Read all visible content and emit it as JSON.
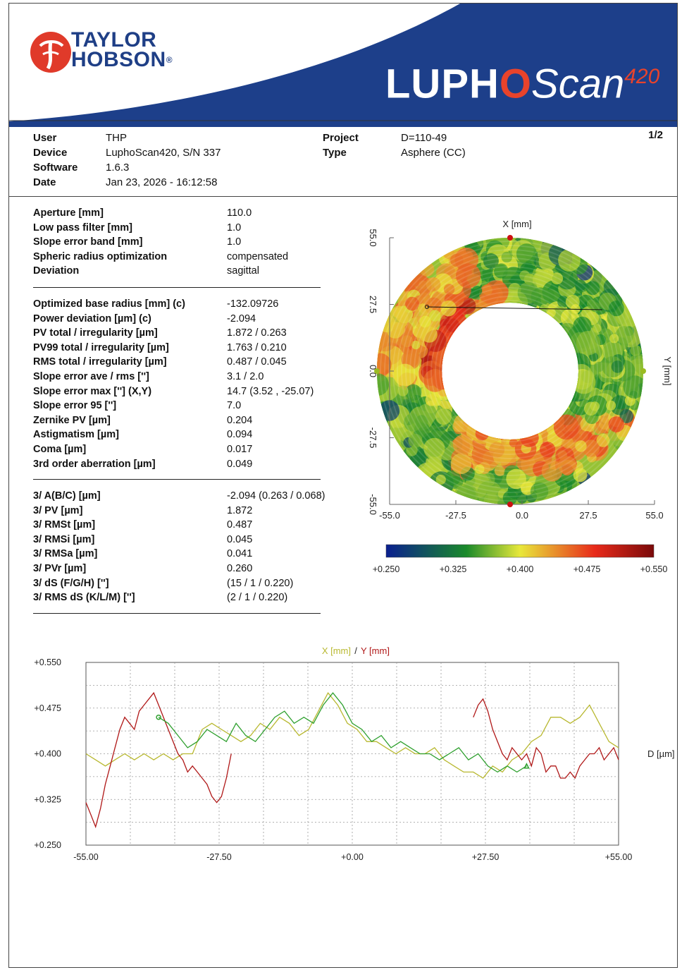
{
  "brand": {
    "line1": "TAYLOR",
    "line2": "HOBSON",
    "reg": "®"
  },
  "product": {
    "name_part1": "LUPH",
    "name_o": "O",
    "name_part2": "Scan",
    "model": "420"
  },
  "page": "1/2",
  "header_info": [
    {
      "label": "User",
      "value": "THP"
    },
    {
      "label": "Device",
      "value": "LuphoScan420, S/N 337"
    },
    {
      "label": "Software",
      "value": "1.6.3"
    },
    {
      "label": "Date",
      "value": "Jan 23, 2026 - 16:12:58"
    }
  ],
  "project_info": [
    {
      "label": "Project",
      "value": "D=110-49"
    },
    {
      "label": "Type",
      "value": "Asphere (CC)"
    }
  ],
  "settings": [
    {
      "label": "Aperture [mm]",
      "value": "110.0"
    },
    {
      "label": "Low pass filter [mm]",
      "value": "1.0"
    },
    {
      "label": "Slope error band [mm]",
      "value": "1.0"
    },
    {
      "label": "Spheric radius optimization",
      "value": "compensated"
    },
    {
      "label": "Deviation",
      "value": "sagittal"
    }
  ],
  "results": [
    {
      "label": "Optimized base radius [mm]  (c)",
      "value": "-132.09726"
    },
    {
      "label": "Power deviation [µm]  (c)",
      "value": "-2.094"
    },
    {
      "label": "PV total / irregularity [µm]",
      "value": "1.872 / 0.263"
    },
    {
      "label": "PV99 total / irregularity [µm]",
      "value": "1.763 / 0.210"
    },
    {
      "label": "RMS total / irregularity [µm]",
      "value": "0.487 / 0.045"
    },
    {
      "label": "Slope error ave / rms ['']",
      "value": "3.1 / 2.0"
    },
    {
      "label": "Slope error max [''] (X,Y)",
      "value": "14.7  (3.52 , -25.07)"
    },
    {
      "label": "Slope error 95 ['']",
      "value": "7.0"
    },
    {
      "label": "Zernike PV [µm]",
      "value": "0.204"
    },
    {
      "label": "Astigmatism [µm]",
      "value": "0.094"
    },
    {
      "label": "Coma [µm]",
      "value": "0.017"
    },
    {
      "label": "3rd order aberration [µm]",
      "value": "0.049"
    }
  ],
  "iso": [
    {
      "label": "3/ A(B/C) [µm]",
      "value": "-2.094 (0.263 / 0.068)"
    },
    {
      "label": "3/ PV [µm]",
      "value": "1.872"
    },
    {
      "label": "3/ RMSt [µm]",
      "value": "0.487"
    },
    {
      "label": "3/ RMSi [µm]",
      "value": "0.045"
    },
    {
      "label": "3/ RMSa [µm]",
      "value": "0.041"
    },
    {
      "label": "3/ PVr [µm]",
      "value": "0.260"
    },
    {
      "label": "3/ dS (F/G/H) ['']",
      "value": "(15 / 1 / 0.220)"
    },
    {
      "label": "3/ RMS dS (K/L/M) ['']",
      "value": "(2 / 1 / 0.220)"
    }
  ],
  "chart_data": [
    {
      "type": "heatmap",
      "title": "",
      "xlabel": "X [mm]",
      "ylabel": "Y [mm]",
      "x_ticks": [
        "-55.0",
        "-27.5",
        "0.0",
        "27.5",
        "55.0"
      ],
      "y_ticks": [
        "55.0",
        "27.5",
        "0.0",
        "-27.5",
        "-55.0"
      ],
      "xlim": [
        -55,
        55
      ],
      "ylim": [
        -55,
        55
      ],
      "colorbar_ticks": [
        "+0.250",
        "+0.325",
        "+0.400",
        "+0.475",
        "+0.550"
      ],
      "colorbar_range": [
        0.25,
        0.55
      ],
      "colors": [
        "#0a1f8f",
        "#1a8a2a",
        "#e8e83a",
        "#e82a1a",
        "#7a0a0a"
      ]
    },
    {
      "type": "line",
      "title": "",
      "legend": [
        "X [mm]",
        "/",
        "Y [mm]"
      ],
      "ylabel": "D [µm]",
      "x_ticks": [
        "-55.00",
        "-27.50",
        "+0.00",
        "+27.50",
        "+55.00"
      ],
      "y_ticks": [
        "+0.550",
        "+0.475",
        "+0.400",
        "+0.325",
        "+0.250"
      ],
      "xlim": [
        -55,
        55
      ],
      "ylim": [
        0.25,
        0.55
      ],
      "grid": true,
      "series": [
        {
          "name": "X [mm]",
          "color": "#b8b830",
          "x": [
            -55,
            -53,
            -51,
            -49,
            -47,
            -45,
            -43,
            -41,
            -39,
            -37,
            -35,
            -33,
            -31,
            -29,
            -27,
            -25,
            -23,
            -21,
            -19,
            -17,
            -15,
            -13,
            -11,
            -9,
            -7,
            -5,
            -3,
            -1,
            1,
            3,
            5,
            7,
            9,
            11,
            13,
            15,
            17,
            19,
            21,
            23,
            25,
            27,
            29,
            31,
            33,
            35,
            37,
            39,
            41,
            43,
            45,
            47,
            49,
            51,
            53,
            55
          ],
          "y": [
            0.4,
            0.39,
            0.38,
            0.39,
            0.4,
            0.39,
            0.4,
            0.39,
            0.4,
            0.39,
            0.4,
            0.4,
            0.44,
            0.45,
            0.44,
            0.43,
            0.42,
            0.43,
            0.45,
            0.44,
            0.46,
            0.45,
            0.43,
            0.44,
            0.47,
            0.5,
            0.48,
            0.45,
            0.44,
            0.42,
            0.42,
            0.41,
            0.4,
            0.41,
            0.4,
            0.4,
            0.41,
            0.39,
            0.38,
            0.37,
            0.37,
            0.36,
            0.38,
            0.37,
            0.39,
            0.4,
            0.42,
            0.43,
            0.46,
            0.46,
            0.45,
            0.46,
            0.48,
            0.45,
            0.42,
            0.41
          ]
        },
        {
          "name": "Y [mm]",
          "color": "#b01818",
          "x": [
            -55,
            -54,
            -53,
            -52,
            -51,
            -50,
            -49,
            -48,
            -47,
            -46,
            -45,
            -44,
            -43,
            -42,
            -41,
            -40,
            -39,
            -38,
            -37,
            -36,
            -35,
            -34,
            -33,
            -32,
            -31,
            -30,
            -29,
            -28,
            -27,
            -26,
            -25,
            25,
            26,
            27,
            28,
            29,
            30,
            31,
            32,
            33,
            34,
            35,
            36,
            37,
            38,
            39,
            40,
            41,
            42,
            43,
            44,
            45,
            46,
            47,
            48,
            49,
            50,
            51,
            52,
            53,
            54,
            55
          ],
          "y": [
            0.32,
            0.3,
            0.28,
            0.31,
            0.35,
            0.38,
            0.41,
            0.44,
            0.46,
            0.45,
            0.44,
            0.47,
            0.48,
            0.49,
            0.5,
            0.48,
            0.46,
            0.44,
            0.42,
            0.4,
            0.39,
            0.37,
            0.38,
            0.37,
            0.36,
            0.35,
            0.33,
            0.32,
            0.33,
            0.36,
            0.4,
            0.46,
            0.48,
            0.49,
            0.47,
            0.44,
            0.42,
            0.4,
            0.39,
            0.41,
            0.4,
            0.39,
            0.4,
            0.38,
            0.41,
            0.4,
            0.37,
            0.38,
            0.38,
            0.36,
            0.36,
            0.37,
            0.36,
            0.38,
            0.39,
            0.4,
            0.4,
            0.41,
            0.39,
            0.4,
            0.41,
            0.39
          ]
        },
        {
          "name": "",
          "color": "#2fa02f",
          "x": [
            -40,
            -38,
            -36,
            -34,
            -32,
            -30,
            -28,
            -26,
            -24,
            -22,
            -20,
            -18,
            -16,
            -14,
            -12,
            -10,
            -8,
            -6,
            -4,
            -2,
            0,
            2,
            4,
            6,
            8,
            10,
            12,
            14,
            16,
            18,
            20,
            22,
            24,
            26,
            28,
            30,
            32,
            34,
            36
          ],
          "y": [
            0.46,
            0.45,
            0.43,
            0.41,
            0.42,
            0.44,
            0.43,
            0.42,
            0.45,
            0.43,
            0.42,
            0.44,
            0.46,
            0.47,
            0.45,
            0.46,
            0.45,
            0.48,
            0.5,
            0.48,
            0.45,
            0.44,
            0.42,
            0.43,
            0.41,
            0.42,
            0.41,
            0.4,
            0.4,
            0.39,
            0.4,
            0.41,
            0.39,
            0.4,
            0.38,
            0.37,
            0.38,
            0.37,
            0.38
          ]
        }
      ]
    }
  ]
}
